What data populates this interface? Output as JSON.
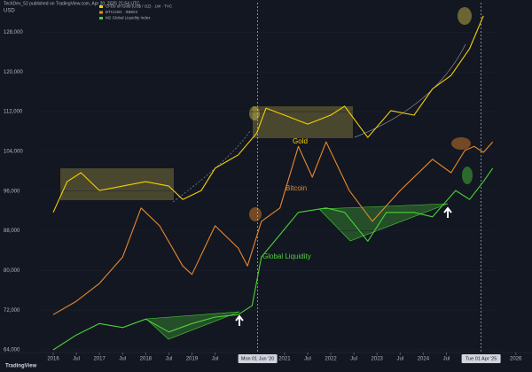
{
  "header": {
    "publisher": "TechDev_52 published on TradingView.com, Apr 20, 2025 21:54 UTC",
    "currency": "USD",
    "logo": "TradingView"
  },
  "chart_data": {
    "type": "line",
    "series": [
      {
        "name": "CFDs on Gold (US$ / OZ) · 1W · TVC",
        "color": "#f5d000",
        "x": [
          2016.0,
          2016.3,
          2016.6,
          2017.0,
          2017.5,
          2018.0,
          2018.5,
          2018.8,
          2019.2,
          2019.5,
          2020.0,
          2020.4,
          2020.6,
          2021.0,
          2021.5,
          2022.0,
          2022.3,
          2022.8,
          2023.3,
          2023.8,
          2024.2,
          2024.6,
          2025.0,
          2025.3
        ],
        "values": [
          91700,
          97900,
          99700,
          96100,
          97000,
          97900,
          97000,
          94300,
          96100,
          100600,
          103300,
          107700,
          112700,
          111300,
          109500,
          111300,
          113100,
          106800,
          112200,
          111300,
          116600,
          119300,
          124700,
          131300
        ]
      },
      {
        "name": "BTCUSD · INDEX",
        "color": "#e8892b",
        "x": [
          2016.0,
          2016.5,
          2017.0,
          2017.5,
          2017.9,
          2018.3,
          2018.8,
          2019.0,
          2019.5,
          2020.0,
          2020.2,
          2020.5,
          2020.9,
          2021.3,
          2021.6,
          2021.9,
          2022.4,
          2022.9,
          2023.5,
          2024.2,
          2024.6,
          2024.9,
          2025.1,
          2025.3,
          2025.5
        ],
        "values": [
          71100,
          73800,
          77400,
          82700,
          92600,
          89000,
          80900,
          79200,
          89000,
          84500,
          80900,
          89900,
          92600,
          105000,
          98800,
          105900,
          96100,
          89900,
          96100,
          102400,
          99700,
          104200,
          105000,
          103800,
          105900
        ]
      },
      {
        "name": "M2 Global Liquidity Index",
        "color": "#4cd137",
        "x": [
          2016.0,
          2016.5,
          2017.0,
          2017.5,
          2018.0,
          2018.5,
          2019.0,
          2019.5,
          2020.0,
          2020.3,
          2020.5,
          2020.9,
          2021.3,
          2021.9,
          2022.3,
          2022.8,
          2023.2,
          2023.8,
          2024.2,
          2024.7,
          2025.0,
          2025.3,
          2025.5
        ],
        "values": [
          64000,
          67000,
          69300,
          68500,
          70200,
          67600,
          69300,
          70600,
          71100,
          72900,
          82700,
          87200,
          91700,
          92600,
          91700,
          85900,
          91700,
          91700,
          90800,
          96100,
          94300,
          97900,
          100600
        ]
      }
    ],
    "annotations": [
      {
        "text": "Gold"
      },
      {
        "text": "Bitcoin"
      },
      {
        "text": "Global Liquidity"
      }
    ],
    "vlines": [
      {
        "value": 2020.42,
        "label": "Mon 01 Jun '20"
      },
      {
        "value": 2025.25,
        "label": "Tue 01 Apr '25"
      }
    ],
    "xlim": [
      2014.85,
      2026.35
    ],
    "xticks": [
      2016,
      {
        "value": 2016.5,
        "label": "Jul"
      },
      2017,
      {
        "value": 2017.5,
        "label": "Jul"
      },
      2018,
      {
        "value": 2018.5,
        "label": "Jul"
      },
      2019,
      {
        "value": 2019.5,
        "label": "Jul"
      },
      2021,
      {
        "value": 2021.5,
        "label": "Jul"
      },
      2022,
      {
        "value": 2022.5,
        "label": "Jul"
      },
      2023,
      {
        "value": 2023.5,
        "label": "Jul"
      },
      2024,
      {
        "value": 2024.5,
        "label": "Jul"
      },
      2026
    ],
    "ylim": [
      62000,
      134000
    ],
    "yticks": [
      {
        "value": 64000,
        "label": "64,000"
      },
      {
        "value": 72000,
        "label": "72,000"
      },
      {
        "value": 80000,
        "label": "80,000"
      },
      {
        "value": 88000,
        "label": "88,000"
      },
      {
        "value": 96000,
        "label": "96,000"
      },
      {
        "value": 104000,
        "label": "104,000"
      },
      {
        "value": 112000,
        "label": "112,000"
      },
      {
        "value": 120000,
        "label": "120,000"
      },
      {
        "value": 128000,
        "label": "128,000"
      }
    ]
  }
}
